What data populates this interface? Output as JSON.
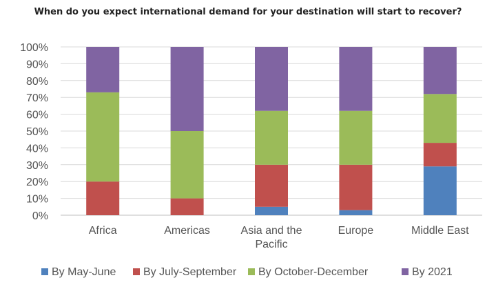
{
  "chart_data": {
    "type": "bar",
    "stacked": true,
    "percent": true,
    "title": "When do you expect international demand for your destination will start to recover?",
    "categories": [
      "Africa",
      "Americas",
      "Asia and the Pacific",
      "Europe",
      "Middle East"
    ],
    "category_lines": [
      [
        "Africa"
      ],
      [
        "Americas"
      ],
      [
        "Asia and the",
        "Pacific"
      ],
      [
        "Europe"
      ],
      [
        "Middle East"
      ]
    ],
    "series": [
      {
        "name": "By May-June",
        "color": "#4f81bd",
        "values": [
          0,
          0,
          5,
          3,
          29
        ]
      },
      {
        "name": "By July-September",
        "color": "#c0504d",
        "values": [
          20,
          10,
          25,
          27,
          14
        ]
      },
      {
        "name": "By October-December",
        "color": "#9bbb59",
        "values": [
          53,
          40,
          32,
          32,
          29
        ]
      },
      {
        "name": "By 2021",
        "color": "#8064a2",
        "values": [
          27,
          50,
          38,
          38,
          28
        ]
      }
    ],
    "ylim": [
      0,
      100
    ],
    "yticks": [
      "0%",
      "10%",
      "20%",
      "30%",
      "40%",
      "50%",
      "60%",
      "70%",
      "80%",
      "90%",
      "100%"
    ],
    "grid": true,
    "legend_position": "bottom"
  }
}
